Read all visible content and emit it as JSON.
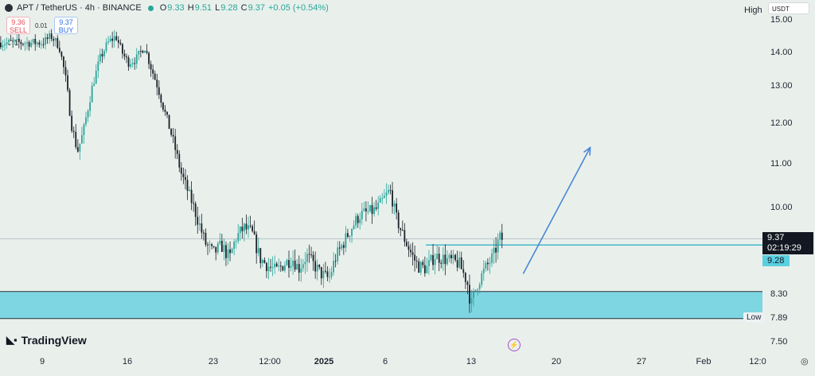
{
  "header": {
    "symbol": "APT / TetherUS · 4h · BINANCE",
    "open_label": "O",
    "open": "9.33",
    "high_label": "H",
    "high": "9.51",
    "low_label": "L",
    "low": "9.28",
    "close_label": "C",
    "close": "9.37",
    "change": "+0.05 (+0.54%)"
  },
  "trade": {
    "sell_price": "9.36",
    "sell_label": "SELL",
    "spread": "0.01",
    "buy_price": "9.37",
    "buy_label": "BUY",
    "small_control": "⌄ 1"
  },
  "scale": {
    "currency": "USDT",
    "high_label": "High",
    "low_label": "Low",
    "low_value": "7.89"
  },
  "price_box": {
    "price": "9.37",
    "countdown": "02:19:29"
  },
  "marker_box": {
    "price": "9.28"
  },
  "branding": {
    "name": "TradingView"
  },
  "colors": {
    "up": "#2aa59a",
    "down": "#1c2028",
    "zone": "#7fd6e3",
    "arrow": "#4a86d6",
    "level_line": "#35b2c6",
    "background": "#e9f0ec"
  },
  "chart_data": {
    "type": "candlestick",
    "symbol": "APT / TetherUS",
    "timeframe": "4h",
    "exchange": "BINANCE",
    "ylim": [
      7.5,
      15.2
    ],
    "y_ticks": [
      "15.00",
      "14.00",
      "13.00",
      "12.00",
      "11.00",
      "10.00",
      "8.30",
      "7.50"
    ],
    "x_ticks": [
      "9",
      "16",
      "23",
      "12:00",
      "2025",
      "6",
      "13",
      "20",
      "27",
      "Feb",
      "12:0"
    ],
    "x_tick_bold": [
      "2025"
    ],
    "x_range": [
      "2024-12-09",
      "2025-02-04"
    ],
    "close_path": [
      {
        "t": "2024-12-09T00:00",
        "p": 14.3
      },
      {
        "t": "2024-12-09T16:00",
        "p": 14.5
      },
      {
        "t": "2024-12-10T08:00",
        "p": 14.2
      },
      {
        "t": "2024-12-10T20:00",
        "p": 13.3
      },
      {
        "t": "2024-12-11T08:00",
        "p": 12.0
      },
      {
        "t": "2024-12-11T20:00",
        "p": 11.3
      },
      {
        "t": "2024-12-12T08:00",
        "p": 11.8
      },
      {
        "t": "2024-12-13T00:00",
        "p": 12.9
      },
      {
        "t": "2024-12-13T16:00",
        "p": 13.8
      },
      {
        "t": "2024-12-14T08:00",
        "p": 14.3
      },
      {
        "t": "2024-12-15T00:00",
        "p": 14.5
      },
      {
        "t": "2024-12-15T12:00",
        "p": 14.0
      },
      {
        "t": "2024-12-16T00:00",
        "p": 13.7
      },
      {
        "t": "2024-12-16T16:00",
        "p": 13.8
      },
      {
        "t": "2024-12-17T08:00",
        "p": 14.2
      },
      {
        "t": "2024-12-17T20:00",
        "p": 13.6
      },
      {
        "t": "2024-12-18T12:00",
        "p": 12.9
      },
      {
        "t": "2024-12-19T00:00",
        "p": 12.3
      },
      {
        "t": "2024-12-19T16:00",
        "p": 11.6
      },
      {
        "t": "2024-12-20T08:00",
        "p": 10.8
      },
      {
        "t": "2024-12-21T00:00",
        "p": 10.3
      },
      {
        "t": "2024-12-21T16:00",
        "p": 9.8
      },
      {
        "t": "2024-12-22T08:00",
        "p": 9.3
      },
      {
        "t": "2024-12-23T00:00",
        "p": 9.1
      },
      {
        "t": "2024-12-23T16:00",
        "p": 9.25
      },
      {
        "t": "2024-12-24T08:00",
        "p": 9.0
      },
      {
        "t": "2024-12-24T20:00",
        "p": 9.4
      },
      {
        "t": "2024-12-25T12:00",
        "p": 9.6
      },
      {
        "t": "2024-12-26T04:00",
        "p": 9.5
      },
      {
        "t": "2024-12-26T20:00",
        "p": 9.0
      },
      {
        "t": "2024-12-27T12:00",
        "p": 8.85
      },
      {
        "t": "2024-12-28T04:00",
        "p": 8.75
      },
      {
        "t": "2024-12-28T20:00",
        "p": 8.9
      },
      {
        "t": "2024-12-29T12:00",
        "p": 9.0
      },
      {
        "t": "2024-12-30T00:00",
        "p": 8.8
      },
      {
        "t": "2024-12-30T16:00",
        "p": 9.05
      },
      {
        "t": "2024-12-31T08:00",
        "p": 8.85
      },
      {
        "t": "2024-12-31T20:00",
        "p": 8.7
      },
      {
        "t": "2025-01-01T12:00",
        "p": 8.6
      },
      {
        "t": "2025-01-02T00:00",
        "p": 9.0
      },
      {
        "t": "2025-01-02T16:00",
        "p": 9.3
      },
      {
        "t": "2025-01-03T08:00",
        "p": 9.6
      },
      {
        "t": "2025-01-04T00:00",
        "p": 9.85
      },
      {
        "t": "2025-01-04T16:00",
        "p": 9.9
      },
      {
        "t": "2025-01-05T08:00",
        "p": 9.95
      },
      {
        "t": "2025-01-06T00:00",
        "p": 10.2
      },
      {
        "t": "2025-01-06T12:00",
        "p": 10.4
      },
      {
        "t": "2025-01-07T00:00",
        "p": 9.8
      },
      {
        "t": "2025-01-07T16:00",
        "p": 9.4
      },
      {
        "t": "2025-01-08T08:00",
        "p": 9.05
      },
      {
        "t": "2025-01-08T20:00",
        "p": 8.85
      },
      {
        "t": "2025-01-09T12:00",
        "p": 8.8
      },
      {
        "t": "2025-01-10T04:00",
        "p": 9.05
      },
      {
        "t": "2025-01-10T20:00",
        "p": 9.0
      },
      {
        "t": "2025-01-11T12:00",
        "p": 8.95
      },
      {
        "t": "2025-01-12T04:00",
        "p": 8.9
      },
      {
        "t": "2025-01-12T20:00",
        "p": 8.55
      },
      {
        "t": "2025-01-13T04:00",
        "p": 8.1
      },
      {
        "t": "2025-01-13T16:00",
        "p": 8.5
      },
      {
        "t": "2025-01-14T08:00",
        "p": 8.8
      },
      {
        "t": "2025-01-15T00:00",
        "p": 9.05
      },
      {
        "t": "2025-01-15T12:00",
        "p": 9.4
      },
      {
        "t": "2025-01-15T20:00",
        "p": 9.37
      }
    ],
    "annotations": {
      "demand_zone": [
        7.89,
        8.35
      ],
      "resistance_line": 9.28,
      "current_price": 9.37,
      "arrow": {
        "from": {
          "t": "2025-01-17T12:00",
          "p": 8.7
        },
        "to": {
          "t": "2025-01-23T00:00",
          "p": 11.4
        }
      }
    },
    "grid": false,
    "legend": "none"
  }
}
